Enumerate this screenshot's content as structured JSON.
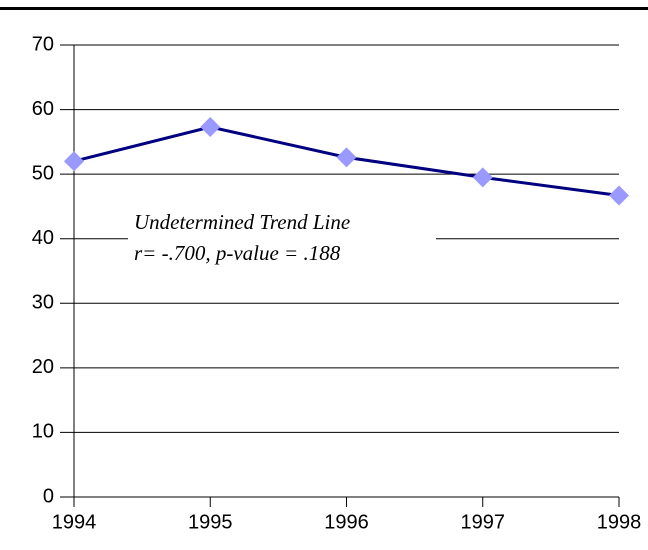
{
  "chart_data": {
    "type": "line",
    "x": [
      1994,
      1995,
      1996,
      1997,
      1998
    ],
    "values": [
      52,
      57.3,
      52.6,
      49.5,
      46.7
    ],
    "color": "#000080",
    "marker_color": "#9999ff",
    "xlim": [
      1994,
      1998
    ],
    "xticks": [
      1994,
      1995,
      1996,
      1997,
      1998
    ],
    "ylim": [
      0,
      70
    ],
    "yticks": [
      0,
      10,
      20,
      30,
      40,
      50,
      60,
      70
    ],
    "grid": true,
    "annotations": [
      "Undetermined Trend Line",
      "r= -.700, p-value = .188"
    ]
  }
}
